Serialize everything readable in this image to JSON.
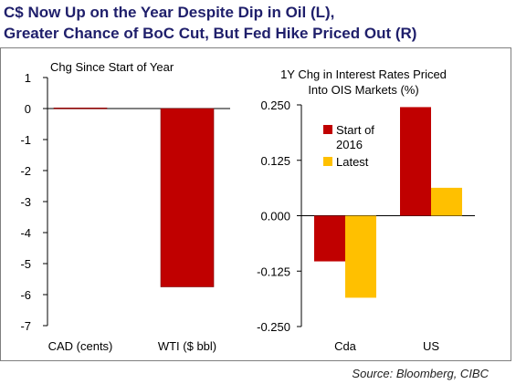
{
  "title_line1": "C$ Now Up on the Year Despite Dip in Oil (L),",
  "title_line2": "Greater Chance of BoC Cut, But Fed Hike Priced Out (R)",
  "source": "Source: Bloomberg, CIBC",
  "chart_data": [
    {
      "type": "bar",
      "title": "Chg Since Start of Year",
      "categories": [
        "CAD (cents)",
        "WTI ($ bbl)"
      ],
      "series": [
        {
          "values": [
            0.02,
            -5.75
          ]
        }
      ],
      "ylim": [
        -7,
        1
      ],
      "yticks": [
        1,
        0,
        -1,
        -2,
        -3,
        -4,
        -5,
        -6,
        -7
      ],
      "ytick_labels": [
        "1",
        "0",
        "-1",
        "-2",
        "-3",
        "-4",
        "-5",
        "-6",
        "-7"
      ],
      "colors": [
        "#c00000"
      ],
      "grid": false
    },
    {
      "type": "bar",
      "title_line1": "1Y Chg in Interest Rates Priced",
      "title_line2": "Into OIS Markets (%)",
      "categories": [
        "Cda",
        "US"
      ],
      "series": [
        {
          "name": "Start of 2016",
          "legend_line1": "Start of",
          "legend_line2": "2016",
          "values": [
            -0.103,
            0.245
          ],
          "color": "#c00000"
        },
        {
          "name": "Latest",
          "legend_line1": "Latest",
          "values": [
            -0.185,
            0.063
          ],
          "color": "#ffc000"
        }
      ],
      "ylim": [
        -0.25,
        0.25
      ],
      "yticks": [
        0.25,
        0.125,
        0,
        -0.125,
        -0.25
      ],
      "ytick_labels": [
        "0.250",
        "0.125",
        "0.000",
        "-0.125",
        "-0.250"
      ],
      "legend": "upper-left inside plot",
      "grid": false
    }
  ]
}
